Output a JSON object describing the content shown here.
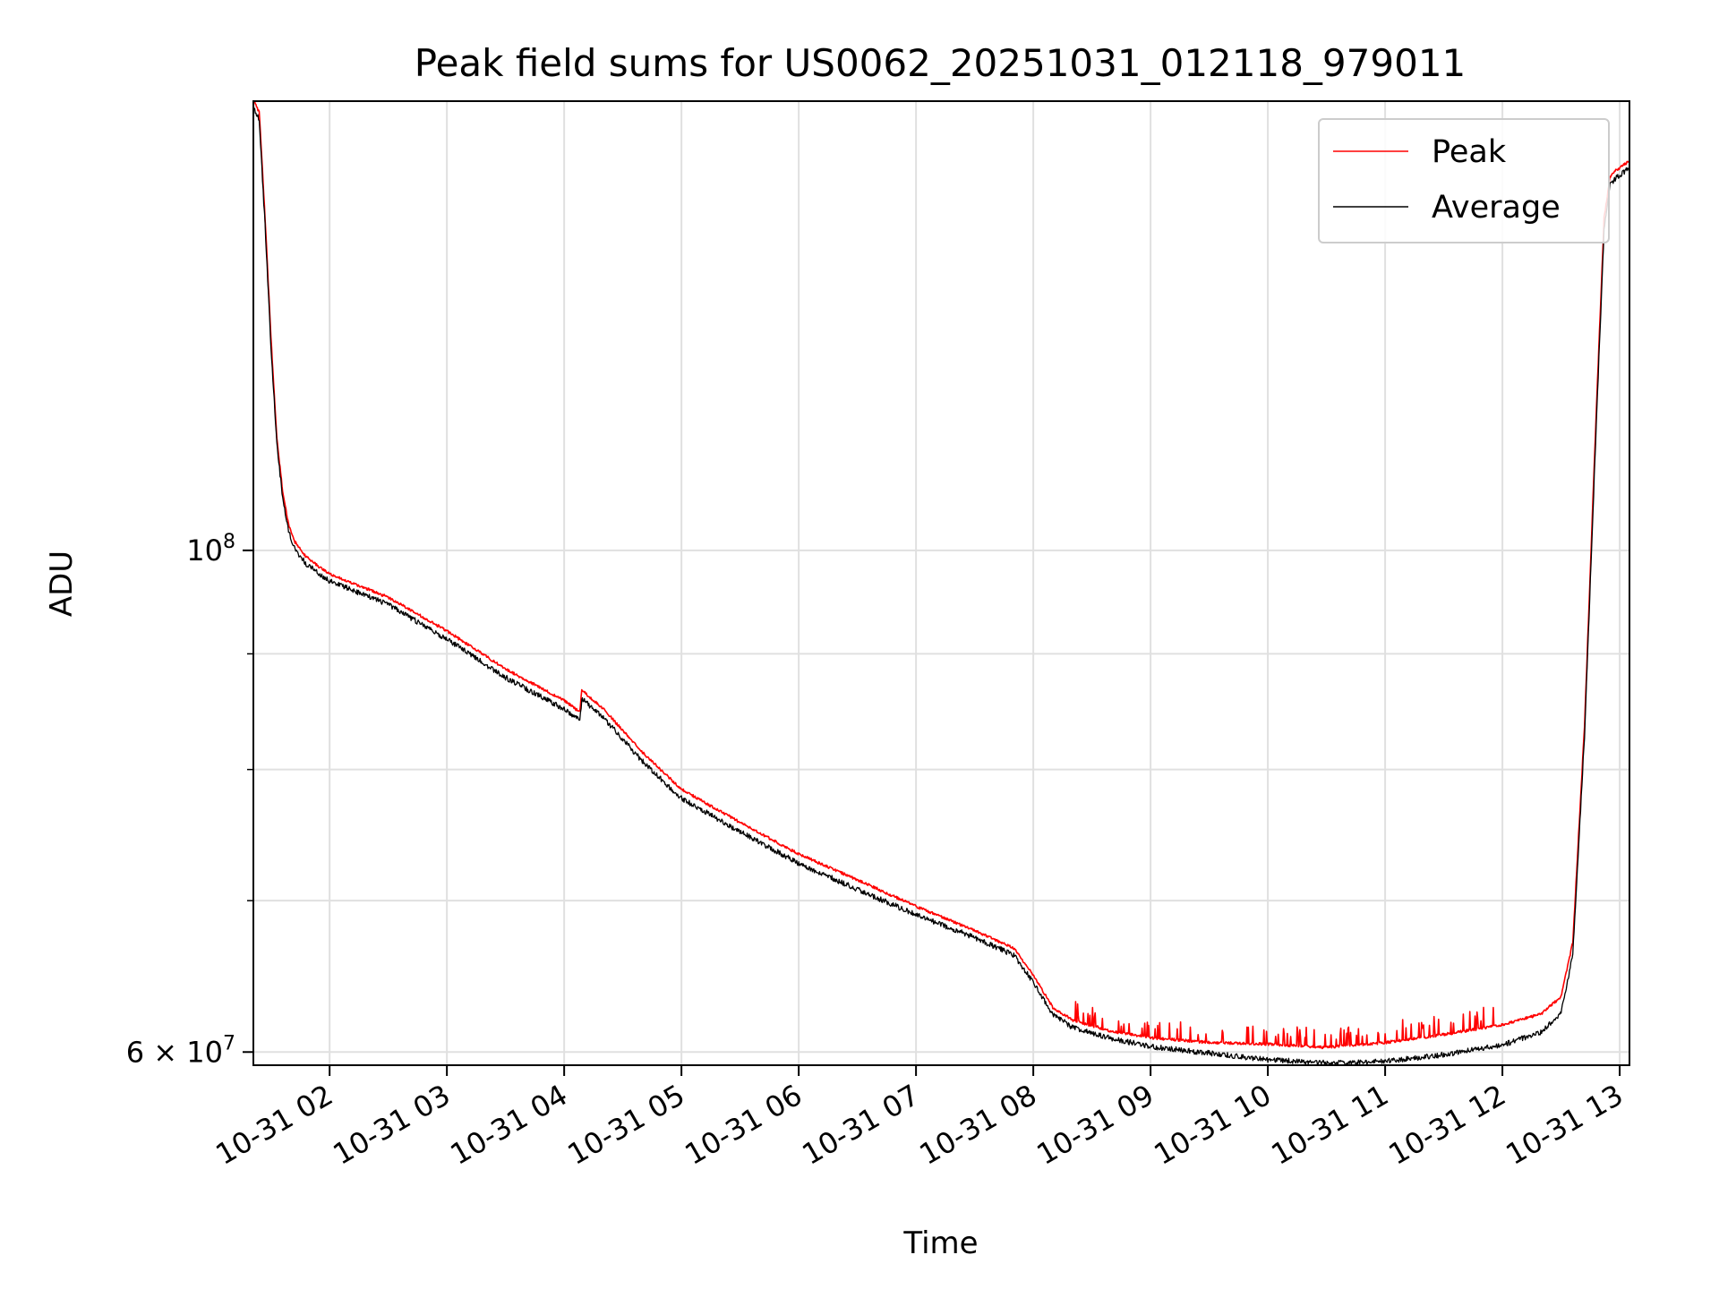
{
  "chart_data": {
    "type": "line",
    "title": "Peak field sums for US0062_20251031_012118_979011",
    "xlabel": "Time",
    "ylabel": "ADU",
    "yscale": "log",
    "grid": true,
    "legend_placement": "top-right",
    "xlim": [
      "2025-10-31T01:21",
      "2025-10-31T13:05"
    ],
    "ylim": [
      59200000,
      158000000
    ],
    "x_tick_labels": [
      "10-31 02",
      "10-31 03",
      "10-31 04",
      "10-31 05",
      "10-31 06",
      "10-31 07",
      "10-31 08",
      "10-31 09",
      "10-31 10",
      "10-31 11",
      "10-31 12",
      "10-31 13"
    ],
    "x_tick_times": [
      "2025-10-31T02:00",
      "2025-10-31T03:00",
      "2025-10-31T04:00",
      "2025-10-31T05:00",
      "2025-10-31T06:00",
      "2025-10-31T07:00",
      "2025-10-31T08:00",
      "2025-10-31T09:00",
      "2025-10-31T10:00",
      "2025-10-31T11:00",
      "2025-10-31T12:00",
      "2025-10-31T13:00"
    ],
    "y_major_ticks": [
      {
        "value": 100000000,
        "base": "10",
        "exp": "8",
        "mantissa": ""
      },
      {
        "value": 60000000,
        "base": "10",
        "exp": "7",
        "mantissa": "6"
      }
    ],
    "y_minor_ticks": [
      70000000,
      80000000,
      90000000
    ],
    "x": [
      "2025-10-31T01:21",
      "2025-10-31T01:24",
      "2025-10-31T01:27",
      "2025-10-31T01:30",
      "2025-10-31T01:33",
      "2025-10-31T01:36",
      "2025-10-31T01:39",
      "2025-10-31T01:42",
      "2025-10-31T01:48",
      "2025-10-31T01:54",
      "2025-10-31T02:00",
      "2025-10-31T02:30",
      "2025-10-31T03:00",
      "2025-10-31T03:30",
      "2025-10-31T04:00",
      "2025-10-31T04:08",
      "2025-10-31T04:09",
      "2025-10-31T04:20",
      "2025-10-31T04:40",
      "2025-10-31T05:00",
      "2025-10-31T05:30",
      "2025-10-31T06:00",
      "2025-10-31T06:30",
      "2025-10-31T07:00",
      "2025-10-31T07:30",
      "2025-10-31T07:50",
      "2025-10-31T08:00",
      "2025-10-31T08:10",
      "2025-10-31T08:20",
      "2025-10-31T08:40",
      "2025-10-31T09:00",
      "2025-10-31T09:30",
      "2025-10-31T10:00",
      "2025-10-31T10:30",
      "2025-10-31T11:00",
      "2025-10-31T11:30",
      "2025-10-31T12:00",
      "2025-10-31T12:20",
      "2025-10-31T12:30",
      "2025-10-31T12:36",
      "2025-10-31T12:42",
      "2025-10-31T12:48",
      "2025-10-31T12:52",
      "2025-10-31T12:55",
      "2025-10-31T12:58",
      "2025-10-31T13:05"
    ],
    "series": [
      {
        "name": "Peak",
        "color": "#ff0000",
        "values": [
          158000000,
          156000000,
          140000000,
          124000000,
          112000000,
          106000000,
          102500000,
          100800000,
          99200000,
          98300000,
          97500000,
          95200000,
          92000000,
          88500000,
          85700000,
          84700000,
          86600000,
          85000000,
          81300000,
          78300000,
          75700000,
          73300000,
          71400000,
          69500000,
          67800000,
          66600000,
          64800000,
          62700000,
          61900000,
          61200000,
          60800000,
          60500000,
          60400000,
          60200000,
          60500000,
          61000000,
          61600000,
          62300000,
          63400000,
          67000000,
          83500000,
          115000000,
          140000000,
          146000000,
          147000000,
          148500000
        ]
      },
      {
        "name": "Average",
        "color": "#000000",
        "values": [
          157500000,
          155500000,
          139500000,
          123500000,
          111700000,
          105700000,
          102200000,
          100500000,
          98900000,
          98000000,
          97200000,
          94900000,
          91600000,
          88100000,
          85300000,
          84300000,
          86200000,
          84600000,
          80900000,
          77900000,
          75300000,
          72900000,
          71000000,
          69200000,
          67600000,
          66400000,
          64600000,
          62500000,
          61700000,
          61000000,
          60500000,
          60100000,
          59700000,
          59500000,
          59600000,
          60000000,
          60600000,
          61400000,
          62600000,
          66400000,
          83000000,
          114000000,
          139000000,
          145500000,
          146500000,
          148000000
        ]
      }
    ]
  }
}
